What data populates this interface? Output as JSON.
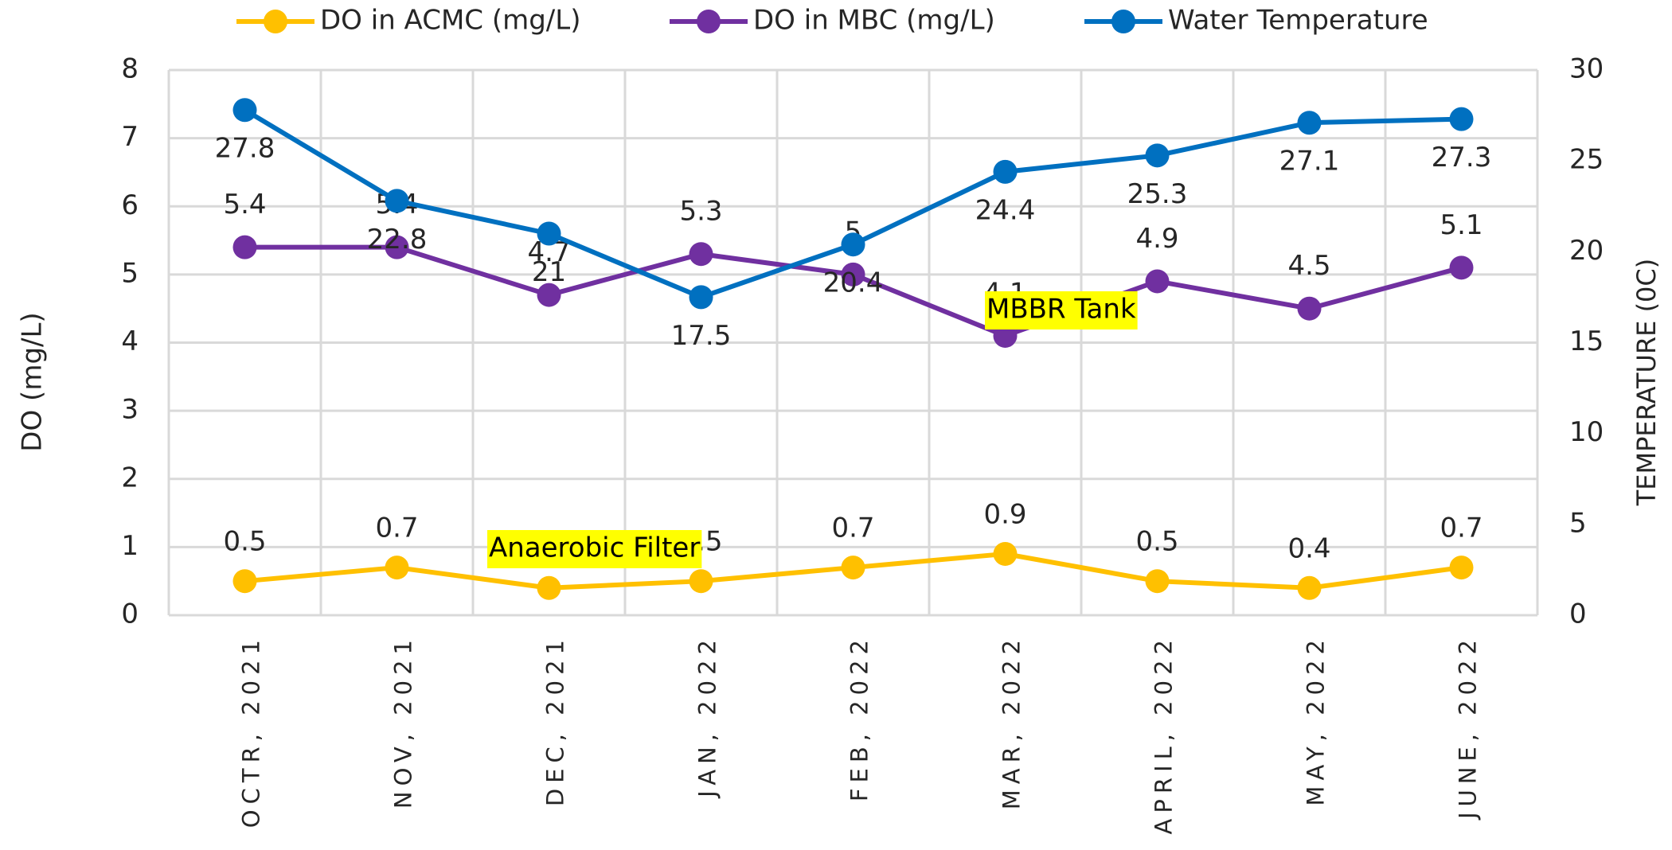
{
  "chart_data": {
    "type": "line",
    "categories": [
      "OCTR, 2021",
      "NOV, 2021",
      "DEC, 2021",
      "JAN, 2022",
      "FEB, 2022",
      "MAR, 2022",
      "APRIL,  2022",
      "MAY, 2022",
      "JUNE, 2022"
    ],
    "series": [
      {
        "name": "DO in ACMC (mg/L)",
        "color": "#ffc000",
        "values": [
          0.5,
          0.7,
          0.4,
          0.5,
          0.7,
          0.9,
          0.5,
          0.4,
          0.7
        ]
      },
      {
        "name": "DO in MBC (mg/L)",
        "color": "#7030a0",
        "values": [
          5.4,
          5.4,
          4.7,
          5.3,
          5,
          4.1,
          4.9,
          4.5,
          5.1
        ]
      },
      {
        "name": "Water Temperature",
        "color": "#0070c0",
        "axis": "y2",
        "values": [
          27.8,
          22.8,
          21,
          17.5,
          20.4,
          24.4,
          25.3,
          27.1,
          27.3
        ]
      }
    ],
    "ylabel": "DO (mg/L)",
    "y2label": "TEMPERATURE (0C)",
    "ylim": [
      0,
      8
    ],
    "yticks": [
      0,
      1,
      2,
      3,
      4,
      5,
      6,
      7,
      8
    ],
    "y2lim": [
      0,
      30
    ],
    "y2ticks": [
      0,
      5,
      10,
      15,
      20,
      25,
      30
    ],
    "grid": true,
    "legend": "top",
    "annotations": [
      "MBBR Tank",
      "Anaerobic Filter"
    ]
  }
}
